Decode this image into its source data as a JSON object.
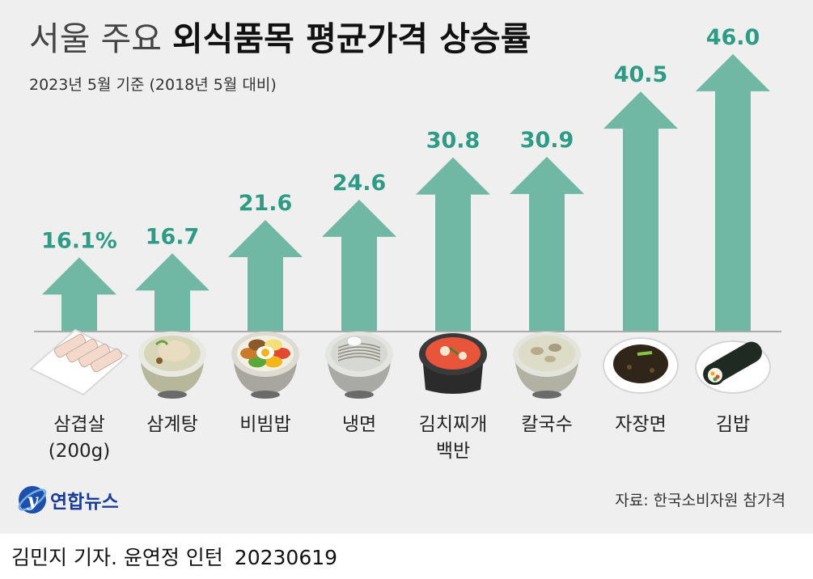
{
  "title": {
    "light": "서울 주요 ",
    "bold": "외식품목 평균가격 상승률"
  },
  "subtitle": "2023년 5월 기준 (2018년 5월 대비)",
  "chart_data": {
    "type": "bar",
    "title": "서울 주요 외식품목 평균가격 상승률",
    "subtitle": "2023년 5월 기준 (2018년 5월 대비)",
    "unit": "%",
    "categories": [
      [
        "삼겹살",
        "(200g)"
      ],
      [
        "삼계탕"
      ],
      [
        "비빔밥"
      ],
      [
        "냉면"
      ],
      [
        "김치찌개",
        "백반"
      ],
      [
        "칼국수"
      ],
      [
        "자장면"
      ],
      [
        "김밥"
      ]
    ],
    "value_labels": [
      "16.1%",
      "16.7",
      "21.6",
      "24.6",
      "30.8",
      "30.9",
      "40.5",
      "46.0"
    ],
    "values": [
      16.1,
      16.7,
      21.6,
      24.6,
      30.8,
      30.9,
      40.5,
      46.0
    ],
    "food_icons": [
      "samgyeopsal-plate",
      "samgyetang-bowl",
      "bibimbap-bowl",
      "naengmyeon-bowl",
      "kimchi-jjigae-pot",
      "kalguksu-bowl",
      "jajangmyeon-plate",
      "gimbap-plate"
    ],
    "colors": {
      "arrow": "#70b7a4",
      "value": "#2e9b84",
      "background": "#efefef"
    }
  },
  "logo": {
    "text": "연합뉴스",
    "mark": "yonhap-logo-icon"
  },
  "source": "자료: 한국소비자원 참가격",
  "credit": {
    "byline": "김민지 기자. 윤연정 인턴",
    "date": "20230619"
  }
}
